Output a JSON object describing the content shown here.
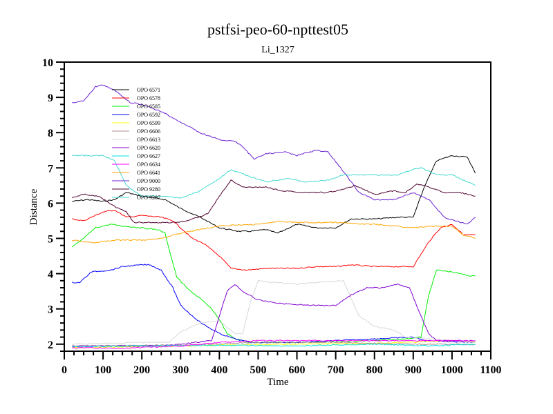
{
  "chart_data": {
    "type": "line",
    "title": "pstfsi-peo-60-npttest05",
    "subtitle": "Li_1327",
    "xlabel": "Time",
    "ylabel": "Distance",
    "xlim": [
      0,
      1100
    ],
    "ylim": [
      1.8,
      10
    ],
    "xticks": [
      "0",
      "100",
      "200",
      "300",
      "400",
      "500",
      "600",
      "700",
      "800",
      "900",
      "1000",
      "1100"
    ],
    "yticks": [
      "2",
      "3",
      "4",
      "5",
      "6",
      "7",
      "8",
      "9",
      "10"
    ],
    "legend_position": "upper-left inside",
    "grid": false,
    "series": [
      {
        "name": "OPO 6571",
        "color": "#000000",
        "points": [
          [
            20,
            6.05
          ],
          [
            60,
            6.1
          ],
          [
            100,
            6.05
          ],
          [
            130,
            6.1
          ],
          [
            160,
            6.3
          ],
          [
            200,
            6.2
          ],
          [
            260,
            6.1
          ],
          [
            300,
            5.85
          ],
          [
            350,
            5.6
          ],
          [
            400,
            5.3
          ],
          [
            450,
            5.2
          ],
          [
            480,
            5.2
          ],
          [
            520,
            5.25
          ],
          [
            550,
            5.15
          ],
          [
            600,
            5.4
          ],
          [
            650,
            5.3
          ],
          [
            700,
            5.3
          ],
          [
            740,
            5.55
          ],
          [
            800,
            5.55
          ],
          [
            860,
            5.6
          ],
          [
            900,
            5.6
          ],
          [
            930,
            6.5
          ],
          [
            960,
            7.2
          ],
          [
            1000,
            7.35
          ],
          [
            1040,
            7.3
          ],
          [
            1060,
            6.85
          ]
        ]
      },
      {
        "name": "OPO 6578",
        "color": "#ff0000",
        "points": [
          [
            20,
            5.55
          ],
          [
            50,
            5.5
          ],
          [
            100,
            5.75
          ],
          [
            130,
            5.8
          ],
          [
            160,
            5.6
          ],
          [
            200,
            5.65
          ],
          [
            250,
            5.6
          ],
          [
            280,
            5.5
          ],
          [
            300,
            5.3
          ],
          [
            330,
            5.0
          ],
          [
            360,
            4.85
          ],
          [
            400,
            4.5
          ],
          [
            430,
            4.15
          ],
          [
            470,
            4.1
          ],
          [
            520,
            4.15
          ],
          [
            600,
            4.15
          ],
          [
            650,
            4.2
          ],
          [
            700,
            4.2
          ],
          [
            740,
            4.25
          ],
          [
            800,
            4.2
          ],
          [
            860,
            4.2
          ],
          [
            900,
            4.2
          ],
          [
            940,
            4.9
          ],
          [
            970,
            5.3
          ],
          [
            1000,
            5.4
          ],
          [
            1030,
            5.1
          ],
          [
            1060,
            5.1
          ]
        ]
      },
      {
        "name": "OPO 6585",
        "color": "#00ee00",
        "points": [
          [
            20,
            4.75
          ],
          [
            50,
            5.0
          ],
          [
            80,
            5.3
          ],
          [
            120,
            5.4
          ],
          [
            150,
            5.35
          ],
          [
            200,
            5.3
          ],
          [
            240,
            5.25
          ],
          [
            260,
            5.15
          ],
          [
            275,
            4.5
          ],
          [
            290,
            3.9
          ],
          [
            320,
            3.55
          ],
          [
            350,
            3.3
          ],
          [
            380,
            3.0
          ],
          [
            400,
            2.7
          ],
          [
            420,
            2.3
          ],
          [
            440,
            2.15
          ],
          [
            480,
            2.05
          ],
          [
            600,
            2.05
          ],
          [
            800,
            2.1
          ],
          [
            880,
            2.15
          ],
          [
            920,
            2.2
          ],
          [
            940,
            3.4
          ],
          [
            960,
            4.1
          ],
          [
            1000,
            4.05
          ],
          [
            1040,
            3.95
          ],
          [
            1060,
            3.93
          ]
        ]
      },
      {
        "name": "OPO 6592",
        "color": "#0000ff",
        "points": [
          [
            20,
            3.75
          ],
          [
            40,
            3.75
          ],
          [
            70,
            4.05
          ],
          [
            120,
            4.1
          ],
          [
            150,
            4.2
          ],
          [
            200,
            4.25
          ],
          [
            220,
            4.25
          ],
          [
            250,
            4.1
          ],
          [
            280,
            3.6
          ],
          [
            300,
            3.1
          ],
          [
            330,
            2.8
          ],
          [
            360,
            2.55
          ],
          [
            400,
            2.3
          ],
          [
            440,
            2.15
          ],
          [
            480,
            2.05
          ],
          [
            600,
            2.05
          ],
          [
            800,
            2.15
          ],
          [
            900,
            2.2
          ],
          [
            930,
            2.1
          ],
          [
            1060,
            2.05
          ]
        ]
      },
      {
        "name": "OPO 6599",
        "color": "#ffff00",
        "points": [
          [
            20,
            1.9
          ],
          [
            200,
            1.93
          ],
          [
            400,
            1.97
          ],
          [
            600,
            2.0
          ],
          [
            800,
            2.02
          ],
          [
            1000,
            2.1
          ],
          [
            1060,
            2.05
          ]
        ]
      },
      {
        "name": "OPO 6606",
        "color": "#b09090",
        "points": [
          [
            20,
            1.95
          ],
          [
            300,
            1.97
          ],
          [
            500,
            2.05
          ],
          [
            700,
            2.05
          ],
          [
            900,
            2.0
          ],
          [
            1000,
            2.0
          ],
          [
            1060,
            1.98
          ]
        ]
      },
      {
        "name": "OPO 6613",
        "color": "#d8d8d8",
        "points": [
          [
            20,
            2.0
          ],
          [
            200,
            2.05
          ],
          [
            270,
            2.05
          ],
          [
            300,
            2.35
          ],
          [
            350,
            2.6
          ],
          [
            400,
            2.65
          ],
          [
            440,
            2.3
          ],
          [
            460,
            2.3
          ],
          [
            480,
            3.2
          ],
          [
            500,
            3.8
          ],
          [
            540,
            3.75
          ],
          [
            600,
            3.7
          ],
          [
            650,
            3.75
          ],
          [
            720,
            3.8
          ],
          [
            760,
            2.8
          ],
          [
            800,
            2.5
          ],
          [
            850,
            2.4
          ],
          [
            880,
            2.2
          ],
          [
            1060,
            2.05
          ]
        ]
      },
      {
        "name": "OPO 6620",
        "color": "#8000d0",
        "points": [
          [
            20,
            1.95
          ],
          [
            250,
            1.95
          ],
          [
            300,
            2.0
          ],
          [
            380,
            2.1
          ],
          [
            420,
            3.5
          ],
          [
            440,
            3.7
          ],
          [
            460,
            3.5
          ],
          [
            500,
            3.25
          ],
          [
            560,
            3.15
          ],
          [
            640,
            3.1
          ],
          [
            700,
            3.1
          ],
          [
            740,
            3.4
          ],
          [
            780,
            3.6
          ],
          [
            820,
            3.6
          ],
          [
            860,
            3.7
          ],
          [
            890,
            3.6
          ],
          [
            920,
            2.8
          ],
          [
            940,
            2.3
          ],
          [
            960,
            2.1
          ],
          [
            1060,
            2.1
          ]
        ]
      },
      {
        "name": "OPO 6627",
        "color": "#00e0e0",
        "points": [
          [
            20,
            1.93
          ],
          [
            200,
            1.95
          ],
          [
            400,
            1.97
          ],
          [
            600,
            1.95
          ],
          [
            800,
            2.0
          ],
          [
            950,
            1.95
          ],
          [
            1060,
            2.0
          ]
        ]
      },
      {
        "name": "OPO 6634",
        "color": "#ff00ff",
        "points": [
          [
            20,
            1.9
          ],
          [
            150,
            1.88
          ],
          [
            300,
            1.95
          ],
          [
            400,
            2.05
          ],
          [
            500,
            2.1
          ],
          [
            700,
            2.1
          ],
          [
            900,
            2.1
          ],
          [
            1000,
            2.1
          ],
          [
            1060,
            2.1
          ]
        ]
      },
      {
        "name": "OPO 6641",
        "color": "#ffa500",
        "points": [
          [
            20,
            4.95
          ],
          [
            80,
            4.88
          ],
          [
            130,
            4.95
          ],
          [
            200,
            4.95
          ],
          [
            250,
            5.0
          ],
          [
            300,
            5.15
          ],
          [
            350,
            5.25
          ],
          [
            400,
            5.35
          ],
          [
            450,
            5.38
          ],
          [
            500,
            5.4
          ],
          [
            550,
            5.48
          ],
          [
            600,
            5.45
          ],
          [
            650,
            5.45
          ],
          [
            700,
            5.45
          ],
          [
            750,
            5.42
          ],
          [
            800,
            5.4
          ],
          [
            850,
            5.35
          ],
          [
            900,
            5.3
          ],
          [
            960,
            5.35
          ],
          [
            1000,
            5.35
          ],
          [
            1030,
            5.1
          ],
          [
            1060,
            5.0
          ]
        ]
      },
      {
        "name": "OPO 9000",
        "color": "#6a1ed0",
        "points": [
          [
            20,
            8.85
          ],
          [
            50,
            8.9
          ],
          [
            80,
            9.3
          ],
          [
            100,
            9.35
          ],
          [
            130,
            9.2
          ],
          [
            170,
            8.85
          ],
          [
            200,
            8.8
          ],
          [
            250,
            8.6
          ],
          [
            300,
            8.3
          ],
          [
            350,
            8.0
          ],
          [
            400,
            7.8
          ],
          [
            440,
            7.75
          ],
          [
            460,
            7.6
          ],
          [
            490,
            7.25
          ],
          [
            520,
            7.4
          ],
          [
            570,
            7.45
          ],
          [
            600,
            7.35
          ],
          [
            650,
            7.5
          ],
          [
            680,
            7.45
          ],
          [
            720,
            6.9
          ],
          [
            760,
            6.3
          ],
          [
            800,
            6.1
          ],
          [
            850,
            6.1
          ],
          [
            900,
            6.3
          ],
          [
            940,
            6.1
          ],
          [
            980,
            5.6
          ],
          [
            1040,
            5.4
          ],
          [
            1060,
            5.6
          ]
        ]
      },
      {
        "name": "OPO 9280",
        "color": "#500030",
        "points": [
          [
            20,
            6.15
          ],
          [
            50,
            6.25
          ],
          [
            90,
            6.2
          ],
          [
            130,
            5.9
          ],
          [
            160,
            5.75
          ],
          [
            180,
            5.45
          ],
          [
            230,
            5.45
          ],
          [
            280,
            5.45
          ],
          [
            320,
            5.5
          ],
          [
            370,
            5.7
          ],
          [
            400,
            6.2
          ],
          [
            430,
            6.65
          ],
          [
            460,
            6.45
          ],
          [
            520,
            6.45
          ],
          [
            560,
            6.35
          ],
          [
            620,
            6.3
          ],
          [
            680,
            6.3
          ],
          [
            720,
            6.4
          ],
          [
            750,
            6.5
          ],
          [
            800,
            6.25
          ],
          [
            850,
            6.35
          ],
          [
            880,
            6.3
          ],
          [
            910,
            6.55
          ],
          [
            940,
            6.45
          ],
          [
            980,
            6.3
          ],
          [
            1020,
            6.3
          ],
          [
            1060,
            6.2
          ]
        ]
      },
      {
        "name": "OPO 9287",
        "color": "#40d8d0",
        "points": [
          [
            20,
            7.35
          ],
          [
            100,
            7.35
          ],
          [
            130,
            7.2
          ],
          [
            160,
            6.5
          ],
          [
            200,
            6.2
          ],
          [
            250,
            6.2
          ],
          [
            300,
            6.15
          ],
          [
            350,
            6.35
          ],
          [
            400,
            6.7
          ],
          [
            430,
            6.95
          ],
          [
            480,
            6.75
          ],
          [
            520,
            6.6
          ],
          [
            580,
            6.7
          ],
          [
            620,
            6.6
          ],
          [
            680,
            6.65
          ],
          [
            720,
            6.8
          ],
          [
            760,
            6.8
          ],
          [
            820,
            6.8
          ],
          [
            860,
            6.8
          ],
          [
            900,
            6.95
          ],
          [
            920,
            7.0
          ],
          [
            960,
            6.8
          ],
          [
            1000,
            6.8
          ],
          [
            1060,
            6.5
          ]
        ]
      }
    ]
  }
}
